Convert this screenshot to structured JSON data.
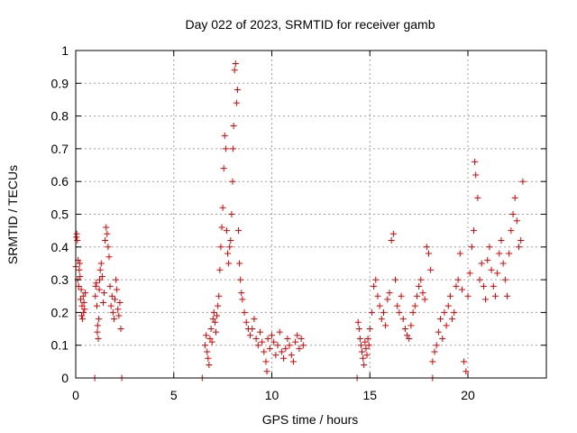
{
  "chart_data": {
    "type": "scatter",
    "title": "Day 022 of 2023, SRMTID for receiver gamb",
    "xlabel": "GPS time / hours",
    "ylabel": "SRMTID / TECUs",
    "xlim": [
      0,
      24
    ],
    "ylim": [
      0,
      1
    ],
    "xticks": [
      0,
      5,
      10,
      15,
      20
    ],
    "yticks": [
      0,
      0.1,
      0.2,
      0.3,
      0.4,
      0.5,
      0.6,
      0.7,
      0.8,
      0.9,
      1
    ],
    "xtick_labels": [
      "0",
      "5",
      "10",
      "15",
      "20"
    ],
    "ytick_labels": [
      "0",
      "0.1",
      "0.2",
      "0.3",
      "0.4",
      "0.5",
      "0.6",
      "0.7",
      "0.8",
      "0.9",
      "1"
    ],
    "grid": true,
    "marker": "+",
    "series": [
      {
        "name": "SRMTID",
        "color": "#e00000",
        "x": [
          0.0,
          0.03,
          0.05,
          0.08,
          0.1,
          0.12,
          0.15,
          0.18,
          0.2,
          0.22,
          0.25,
          0.28,
          0.3,
          0.32,
          0.35,
          0.38,
          0.4,
          0.42,
          0.45,
          0.48,
          1.0,
          1.02,
          1.05,
          1.08,
          1.1,
          1.12,
          1.15,
          1.18,
          1.2,
          1.22,
          1.25,
          1.3,
          1.35,
          1.4,
          1.45,
          1.5,
          1.55,
          1.6,
          1.65,
          1.7,
          1.75,
          1.8,
          1.85,
          1.9,
          1.95,
          2.0,
          2.05,
          2.1,
          2.15,
          2.2,
          2.25,
          2.3,
          0.97,
          2.35,
          6.6,
          6.65,
          6.7,
          6.75,
          6.8,
          6.85,
          6.9,
          6.95,
          7.0,
          7.05,
          7.1,
          7.15,
          7.2,
          7.25,
          7.3,
          7.35,
          7.4,
          7.45,
          7.5,
          7.55,
          7.6,
          7.65,
          7.7,
          7.75,
          7.8,
          7.85,
          7.9,
          7.95,
          8.0,
          8.02,
          8.05,
          8.1,
          8.15,
          8.2,
          8.25,
          8.3,
          8.35,
          8.4,
          8.45,
          8.5,
          8.6,
          8.7,
          8.8,
          8.9,
          9.0,
          9.1,
          9.2,
          9.3,
          9.4,
          9.5,
          9.6,
          9.7,
          9.75,
          9.8,
          9.9,
          10.0,
          10.1,
          10.2,
          10.3,
          10.4,
          10.5,
          10.6,
          10.7,
          10.8,
          10.9,
          11.0,
          11.1,
          11.2,
          11.3,
          11.4,
          11.5,
          11.6,
          6.45,
          14.4,
          14.45,
          14.5,
          14.55,
          14.6,
          14.65,
          14.7,
          14.75,
          14.8,
          14.85,
          14.9,
          14.95,
          15.0,
          15.1,
          15.2,
          15.3,
          15.4,
          15.5,
          15.6,
          15.7,
          15.8,
          15.9,
          16.0,
          16.1,
          16.2,
          16.3,
          16.4,
          16.5,
          16.6,
          16.7,
          16.8,
          16.9,
          17.0,
          17.1,
          17.2,
          17.3,
          17.4,
          17.5,
          17.6,
          17.7,
          17.8,
          17.9,
          18.0,
          18.1,
          18.2,
          18.3,
          18.4,
          18.5,
          18.6,
          18.7,
          18.8,
          18.9,
          19.0,
          19.1,
          19.2,
          19.3,
          19.4,
          19.5,
          19.6,
          19.7,
          19.8,
          19.9,
          20.0,
          20.1,
          20.2,
          20.3,
          20.35,
          20.4,
          20.5,
          20.6,
          20.7,
          20.8,
          20.9,
          21.0,
          21.1,
          21.2,
          21.3,
          21.4,
          21.5,
          21.6,
          21.7,
          21.8,
          21.9,
          22.0,
          22.1,
          22.2,
          22.3,
          22.4,
          22.5,
          22.6,
          22.7,
          22.8,
          14.35,
          18.2
        ],
        "y": [
          0.34,
          0.43,
          0.44,
          0.42,
          0.3,
          0.36,
          0.28,
          0.33,
          0.35,
          0.31,
          0.24,
          0.27,
          0.19,
          0.22,
          0.18,
          0.25,
          0.2,
          0.23,
          0.21,
          0.26,
          0.25,
          0.28,
          0.29,
          0.22,
          0.14,
          0.16,
          0.12,
          0.18,
          0.27,
          0.3,
          0.33,
          0.35,
          0.31,
          0.23,
          0.26,
          0.42,
          0.46,
          0.44,
          0.4,
          0.37,
          0.28,
          0.22,
          0.25,
          0.2,
          0.18,
          0.24,
          0.3,
          0.27,
          0.21,
          0.19,
          0.23,
          0.15,
          0.0,
          0.0,
          0.1,
          0.13,
          0.08,
          0.06,
          0.04,
          0.12,
          0.15,
          0.11,
          0.18,
          0.2,
          0.17,
          0.14,
          0.19,
          0.22,
          0.25,
          0.33,
          0.4,
          0.46,
          0.52,
          0.64,
          0.74,
          0.7,
          0.45,
          0.38,
          0.35,
          0.4,
          0.42,
          0.5,
          0.6,
          0.7,
          0.77,
          0.94,
          0.96,
          0.84,
          0.88,
          0.45,
          0.35,
          0.3,
          0.26,
          0.24,
          0.2,
          0.17,
          0.15,
          0.13,
          0.15,
          0.18,
          0.12,
          0.1,
          0.14,
          0.11,
          0.08,
          0.05,
          0.02,
          0.12,
          0.09,
          0.13,
          0.11,
          0.07,
          0.1,
          0.14,
          0.08,
          0.06,
          0.09,
          0.12,
          0.1,
          0.07,
          0.05,
          0.11,
          0.13,
          0.09,
          0.12,
          0.1,
          0.0,
          0.17,
          0.15,
          0.12,
          0.1,
          0.08,
          0.06,
          0.04,
          0.11,
          0.09,
          0.07,
          0.12,
          0.1,
          0.15,
          0.2,
          0.28,
          0.3,
          0.25,
          0.22,
          0.18,
          0.2,
          0.16,
          0.24,
          0.26,
          0.42,
          0.44,
          0.3,
          0.22,
          0.2,
          0.25,
          0.18,
          0.15,
          0.13,
          0.12,
          0.16,
          0.2,
          0.22,
          0.25,
          0.28,
          0.3,
          0.26,
          0.24,
          0.4,
          0.38,
          0.33,
          0.05,
          0.08,
          0.1,
          0.14,
          0.18,
          0.12,
          0.2,
          0.16,
          0.22,
          0.25,
          0.18,
          0.2,
          0.28,
          0.3,
          0.38,
          0.27,
          0.05,
          0.02,
          0.25,
          0.32,
          0.4,
          0.45,
          0.66,
          0.62,
          0.55,
          0.3,
          0.35,
          0.28,
          0.24,
          0.36,
          0.4,
          0.33,
          0.28,
          0.25,
          0.32,
          0.38,
          0.42,
          0.35,
          0.3,
          0.25,
          0.38,
          0.45,
          0.5,
          0.55,
          0.48,
          0.4,
          0.42,
          0.6,
          0.0,
          0.0
        ]
      }
    ]
  }
}
